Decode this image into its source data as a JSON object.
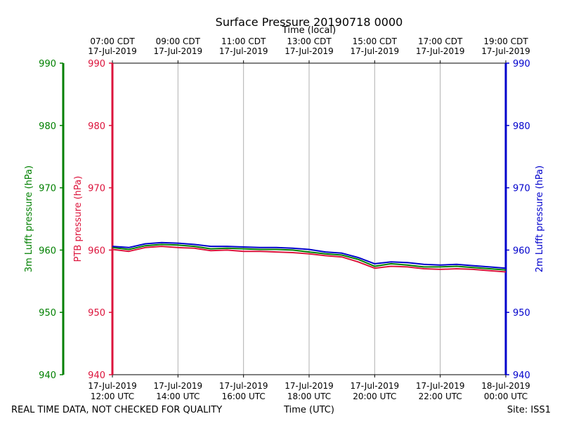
{
  "chart_data": {
    "type": "line",
    "title": "Surface Pressure 20190718 0000",
    "top_axis_label": "Time (local)",
    "xlabel": "Time (UTC)",
    "footer_left": "REAL TIME DATA, NOT CHECKED FOR QUALITY",
    "footer_right": "Site: ISS1",
    "x_range_hours": [
      0,
      12
    ],
    "x_ticks": [
      {
        "hour": 0,
        "top": [
          "07:00 CDT",
          "17-Jul-2019"
        ],
        "bottom": [
          "17-Jul-2019",
          "12:00 UTC"
        ]
      },
      {
        "hour": 2,
        "top": [
          "09:00 CDT",
          "17-Jul-2019"
        ],
        "bottom": [
          "17-Jul-2019",
          "14:00 UTC"
        ]
      },
      {
        "hour": 4,
        "top": [
          "11:00 CDT",
          "17-Jul-2019"
        ],
        "bottom": [
          "17-Jul-2019",
          "16:00 UTC"
        ]
      },
      {
        "hour": 6,
        "top": [
          "13:00 CDT",
          "17-Jul-2019"
        ],
        "bottom": [
          "17-Jul-2019",
          "18:00 UTC"
        ]
      },
      {
        "hour": 8,
        "top": [
          "15:00 CDT",
          "17-Jul-2019"
        ],
        "bottom": [
          "17-Jul-2019",
          "20:00 UTC"
        ]
      },
      {
        "hour": 10,
        "top": [
          "17:00 CDT",
          "17-Jul-2019"
        ],
        "bottom": [
          "17-Jul-2019",
          "22:00 UTC"
        ]
      },
      {
        "hour": 12,
        "top": [
          "19:00 CDT",
          "17-Jul-2019"
        ],
        "bottom": [
          "18-Jul-2019",
          "00:00 UTC"
        ]
      }
    ],
    "ylim": [
      940,
      990
    ],
    "y_ticks": [
      940,
      950,
      960,
      970,
      980,
      990
    ],
    "grid": "vertical",
    "axes": [
      {
        "label": "3m Lufft pressure (hPa)",
        "color": "#008000",
        "side": "left-outer"
      },
      {
        "label": "PTB pressure (hPa)",
        "color": "#dc143c",
        "side": "left-inner"
      },
      {
        "label": "2m Lufft pressure (hPa)",
        "color": "#0000cc",
        "side": "right"
      }
    ],
    "series": [
      {
        "color": "#dc143c",
        "x": [
          0,
          0.5,
          1,
          1.5,
          2,
          2.5,
          3,
          3.5,
          4,
          4.5,
          5,
          5.5,
          6,
          6.5,
          7,
          7.5,
          8,
          8.5,
          9,
          9.5,
          10,
          10.5,
          11,
          11.5,
          12
        ],
        "y": [
          960.1,
          959.8,
          960.4,
          960.6,
          960.4,
          960.3,
          959.9,
          960.0,
          959.8,
          959.8,
          959.7,
          959.6,
          959.4,
          959.1,
          958.9,
          958.1,
          957.1,
          957.4,
          957.3,
          957.0,
          956.9,
          957.0,
          956.9,
          956.7,
          956.5
        ]
      },
      {
        "color": "#008000",
        "x": [
          0,
          0.5,
          1,
          1.5,
          2,
          2.5,
          3,
          3.5,
          4,
          4.5,
          5,
          5.5,
          6,
          6.5,
          7,
          7.5,
          8,
          8.5,
          9,
          9.5,
          10,
          10.5,
          11,
          11.5,
          12
        ],
        "y": [
          960.4,
          960.1,
          960.7,
          960.9,
          960.8,
          960.6,
          960.2,
          960.3,
          960.2,
          960.1,
          960.1,
          960.0,
          959.7,
          959.4,
          959.2,
          958.5,
          957.4,
          957.8,
          957.6,
          957.3,
          957.3,
          957.4,
          957.2,
          957.0,
          956.8
        ]
      },
      {
        "color": "#0000cc",
        "x": [
          0,
          0.5,
          1,
          1.5,
          2,
          2.5,
          3,
          3.5,
          4,
          4.5,
          5,
          5.5,
          6,
          6.5,
          7,
          7.5,
          8,
          8.5,
          9,
          9.5,
          10,
          10.5,
          11,
          11.5,
          12
        ],
        "y": [
          960.6,
          960.4,
          961.0,
          961.2,
          961.1,
          960.9,
          960.6,
          960.6,
          960.5,
          960.4,
          960.4,
          960.3,
          960.1,
          959.7,
          959.5,
          958.8,
          957.8,
          958.1,
          958.0,
          957.7,
          957.6,
          957.7,
          957.5,
          957.3,
          957.1
        ]
      }
    ]
  }
}
